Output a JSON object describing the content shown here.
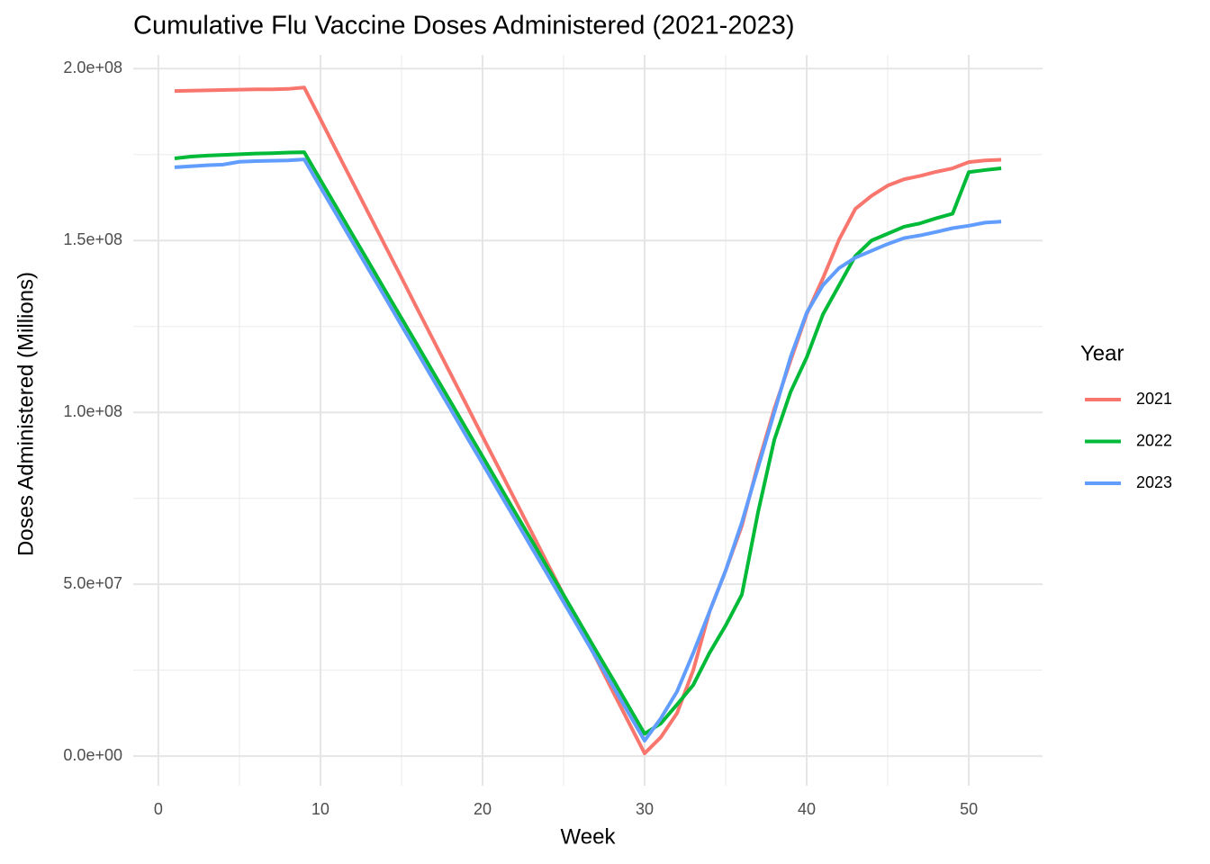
{
  "chart_data": {
    "type": "line",
    "title": "Cumulative Flu Vaccine Doses Administered (2021-2023)",
    "x_label": "Week",
    "y_label": "Doses Administered (Millions)",
    "legend_title": "Year",
    "legend_position": "right",
    "grid": true,
    "x": [
      1,
      2,
      3,
      4,
      5,
      6,
      7,
      8,
      9,
      10,
      11,
      12,
      13,
      14,
      15,
      16,
      17,
      18,
      19,
      20,
      21,
      22,
      23,
      24,
      25,
      26,
      27,
      28,
      29,
      30,
      31,
      32,
      33,
      34,
      35,
      36,
      37,
      38,
      39,
      40,
      41,
      42,
      43,
      44,
      45,
      46,
      47,
      48,
      49,
      50,
      51,
      52
    ],
    "xlim": [
      -1.55,
      54.55
    ],
    "xticks": [
      0,
      10,
      20,
      30,
      40,
      50
    ],
    "ylim": [
      -8600000,
      204000000
    ],
    "yticks": [
      {
        "value": 0,
        "label": "0.0e+00"
      },
      {
        "value": 50000000,
        "label": "5.0e+07"
      },
      {
        "value": 100000000,
        "label": "1.0e+08"
      },
      {
        "value": 150000000,
        "label": "1.5e+08"
      },
      {
        "value": 200000000,
        "label": "2.0e+08"
      }
    ],
    "series": [
      {
        "name": "2021",
        "color": "#F8766D",
        "values": [
          193500000,
          193600000,
          193700000,
          193800000,
          193900000,
          194000000,
          194000000,
          194100000,
          194500000,
          185300000,
          176000000,
          166800000,
          157600000,
          148400000,
          139200000,
          129900000,
          120700000,
          111500000,
          102300000,
          93000000,
          83800000,
          74600000,
          65400000,
          56100000,
          46900000,
          37700000,
          28500000,
          19200000,
          10000000,
          800000,
          5500000,
          12500000,
          25000000,
          42000000,
          54000000,
          67000000,
          85000000,
          101000000,
          115000000,
          128600000,
          139000000,
          150300000,
          159200000,
          163000000,
          166000000,
          167800000,
          168800000,
          170000000,
          171000000,
          172800000,
          173300000,
          173500000
        ]
      },
      {
        "name": "2022",
        "color": "#00BA38",
        "values": [
          173900000,
          174400000,
          174700000,
          174900000,
          175100000,
          175300000,
          175400000,
          175600000,
          175700000,
          167600000,
          159600000,
          151500000,
          143500000,
          135400000,
          127400000,
          119400000,
          111300000,
          103300000,
          95200000,
          87200000,
          79100000,
          71000000,
          63000000,
          54900000,
          46900000,
          38800000,
          30700000,
          22700000,
          14600000,
          6500000,
          9500000,
          15000000,
          20700000,
          30000000,
          38000000,
          47000000,
          71000000,
          92000000,
          105900000,
          116000000,
          128500000,
          137000000,
          145500000,
          150000000,
          152000000,
          154000000,
          155000000,
          156500000,
          157800000,
          169900000,
          170500000,
          171000000
        ]
      },
      {
        "name": "2023",
        "color": "#619CFF",
        "values": [
          171300000,
          171600000,
          171900000,
          172100000,
          172900000,
          173100000,
          173200000,
          173300000,
          173600000,
          165500000,
          157500000,
          149400000,
          141400000,
          133400000,
          125300000,
          117300000,
          109200000,
          101200000,
          93100000,
          85100000,
          77000000,
          69000000,
          60900000,
          52900000,
          44800000,
          36800000,
          28700000,
          20700000,
          12600000,
          4500000,
          11000000,
          18800000,
          30000000,
          42000000,
          54000000,
          68000000,
          84000000,
          100000000,
          116000000,
          129000000,
          137000000,
          142000000,
          145000000,
          147000000,
          149000000,
          150700000,
          151500000,
          152500000,
          153600000,
          154300000,
          155200000,
          155500000
        ]
      }
    ]
  }
}
